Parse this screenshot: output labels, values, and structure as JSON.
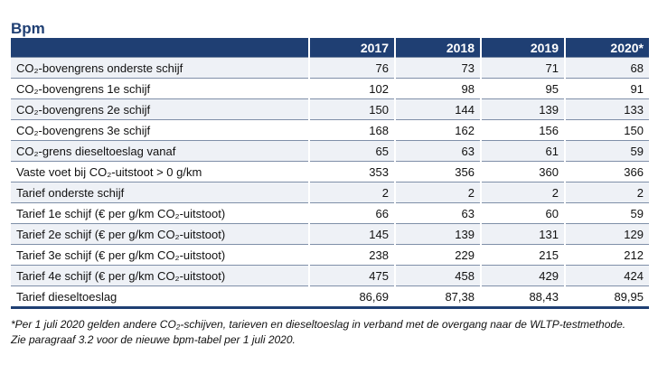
{
  "title": "Bpm",
  "table": {
    "columns": [
      "",
      "2017",
      "2018",
      "2019",
      "2020*"
    ],
    "rows": [
      {
        "label": "CO₂-bovengrens onderste schijf",
        "values": [
          "76",
          "73",
          "71",
          "68"
        ]
      },
      {
        "label": "CO₂-bovengrens 1e schijf",
        "values": [
          "102",
          "98",
          "95",
          "91"
        ]
      },
      {
        "label": "CO₂-bovengrens 2e schijf",
        "values": [
          "150",
          "144",
          "139",
          "133"
        ]
      },
      {
        "label": "CO₂-bovengrens 3e schijf",
        "values": [
          "168",
          "162",
          "156",
          "150"
        ]
      },
      {
        "label": "CO₂-grens dieseltoeslag vanaf",
        "values": [
          "65",
          "63",
          "61",
          "59"
        ]
      },
      {
        "label": "Vaste voet bij CO₂-uitstoot > 0 g/km",
        "values": [
          "353",
          "356",
          "360",
          "366"
        ]
      },
      {
        "label": "Tarief onderste schijf",
        "values": [
          "2",
          "2",
          "2",
          "2"
        ]
      },
      {
        "label": "Tarief 1e schijf (€ per g/km CO₂-uitstoot)",
        "values": [
          "66",
          "63",
          "60",
          "59"
        ]
      },
      {
        "label": "Tarief 2e schijf (€ per g/km CO₂-uitstoot)",
        "values": [
          "145",
          "139",
          "131",
          "129"
        ]
      },
      {
        "label": "Tarief 3e schijf (€ per g/km CO₂-uitstoot)",
        "values": [
          "238",
          "229",
          "215",
          "212"
        ]
      },
      {
        "label": "Tarief 4e schijf (€ per g/km CO₂-uitstoot)",
        "values": [
          "475",
          "458",
          "429",
          "424"
        ]
      },
      {
        "label": "Tarief dieseltoeslag",
        "values": [
          "86,69",
          "87,38",
          "88,43",
          "89,95"
        ]
      }
    ]
  },
  "footnote": "*Per 1 juli 2020 gelden andere CO₂-schijven, tarieven en dieseltoeslag in verband met de overgang naar de WLTP-testmethode. Zie paragraaf 3.2 voor de nieuwe bpm-tabel per 1 juli 2020.",
  "colors": {
    "header_bg": "#1f3f73",
    "stripe": "#eef1f6"
  }
}
